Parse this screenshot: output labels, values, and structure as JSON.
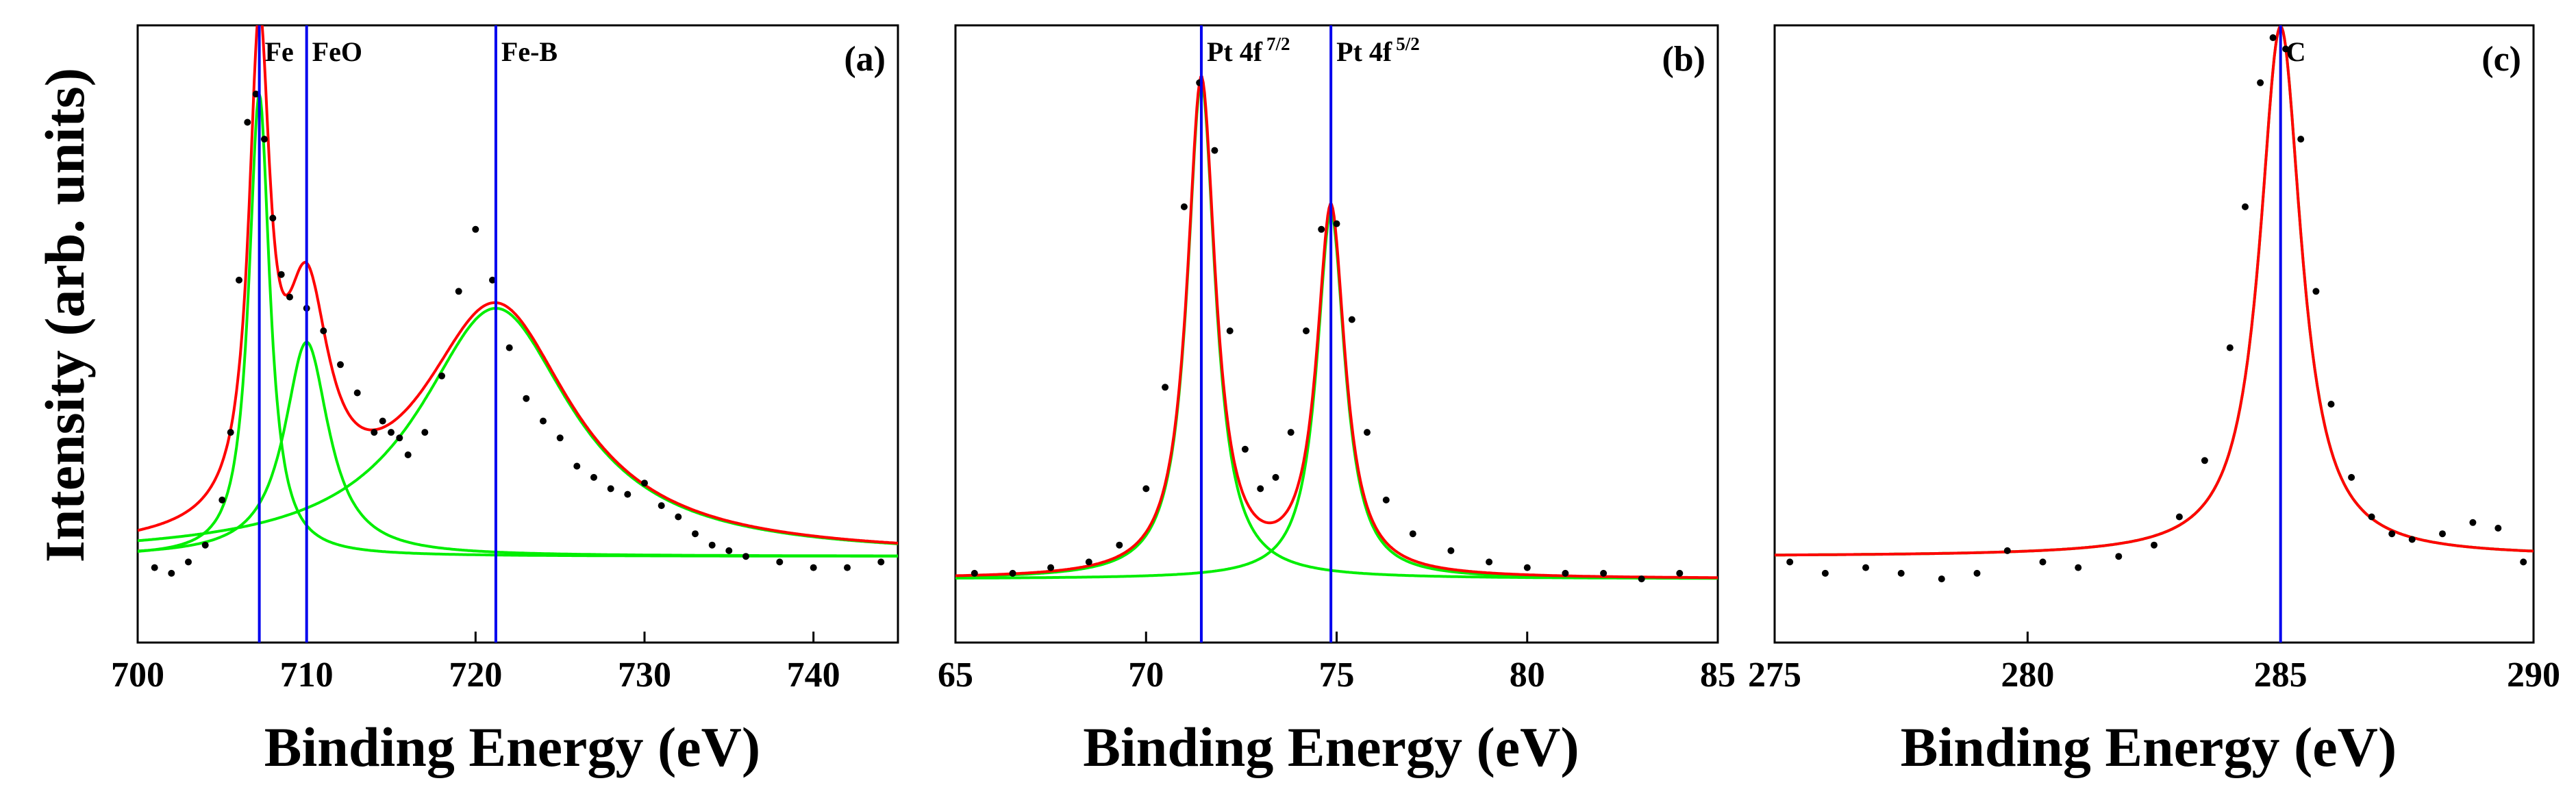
{
  "ylabel": "Intensity (arb. units)",
  "colors": {
    "envelope": "#ff0000",
    "component": "#00ee00",
    "marker": "#0000ee",
    "data": "#000000",
    "frame": "#000000"
  },
  "chart_data": [
    {
      "type": "line",
      "panel": "(a)",
      "xlabel": "Binding Energy (eV)",
      "xlim": [
        700,
        745
      ],
      "ylim": [
        0,
        1
      ],
      "xticks": [
        700,
        710,
        720,
        730,
        740
      ],
      "xtick_labels": [
        "700",
        "710",
        "720",
        "730",
        "740"
      ],
      "markers": [
        {
          "x": 707.2,
          "label": "Fe",
          "sup": ""
        },
        {
          "x": 710.0,
          "label": "FeO",
          "sup": ""
        },
        {
          "x": 721.2,
          "label": "Fe-B",
          "sup": ""
        }
      ],
      "baseline": 0.08,
      "components": [
        {
          "name": "Fe",
          "center": 707.2,
          "amp": 0.82,
          "width": 0.75
        },
        {
          "name": "FeO",
          "center": 710.0,
          "amp": 0.38,
          "width": 1.6
        },
        {
          "name": "Fe-B",
          "center": 721.2,
          "amp": 0.44,
          "width": 5.5
        }
      ],
      "data_points": [
        [
          701,
          0.06
        ],
        [
          702,
          0.05
        ],
        [
          703,
          0.07
        ],
        [
          704,
          0.1
        ],
        [
          705,
          0.18
        ],
        [
          705.5,
          0.3
        ],
        [
          706,
          0.57
        ],
        [
          706.5,
          0.85
        ],
        [
          707,
          0.9
        ],
        [
          707.5,
          0.82
        ],
        [
          708,
          0.68
        ],
        [
          708.5,
          0.58
        ],
        [
          709,
          0.54
        ],
        [
          710,
          0.52
        ],
        [
          711,
          0.48
        ],
        [
          712,
          0.42
        ],
        [
          713,
          0.37
        ],
        [
          714,
          0.3
        ],
        [
          714.5,
          0.32
        ],
        [
          715,
          0.3
        ],
        [
          715.5,
          0.29
        ],
        [
          716,
          0.26
        ],
        [
          717,
          0.3
        ],
        [
          718,
          0.4
        ],
        [
          719,
          0.55
        ],
        [
          720,
          0.66
        ],
        [
          721,
          0.57
        ],
        [
          722,
          0.45
        ],
        [
          723,
          0.36
        ],
        [
          724,
          0.32
        ],
        [
          725,
          0.29
        ],
        [
          726,
          0.24
        ],
        [
          727,
          0.22
        ],
        [
          728,
          0.2
        ],
        [
          729,
          0.19
        ],
        [
          730,
          0.21
        ],
        [
          731,
          0.17
        ],
        [
          732,
          0.15
        ],
        [
          733,
          0.12
        ],
        [
          734,
          0.1
        ],
        [
          735,
          0.09
        ],
        [
          736,
          0.08
        ],
        [
          738,
          0.07
        ],
        [
          740,
          0.06
        ],
        [
          742,
          0.06
        ],
        [
          744,
          0.07
        ]
      ]
    },
    {
      "type": "line",
      "panel": "(b)",
      "xlabel": "Binding Energy (eV)",
      "xlim": [
        65,
        85
      ],
      "ylim": [
        0,
        1
      ],
      "xticks": [
        65,
        70,
        75,
        80,
        85
      ],
      "xtick_labels": [
        "65",
        "70",
        "75",
        "80",
        "85"
      ],
      "markers": [
        {
          "x": 71.45,
          "label": "Pt 4f",
          "sup": "7/2"
        },
        {
          "x": 74.85,
          "label": "Pt 4f",
          "sup": "5/2"
        }
      ],
      "baseline": 0.04,
      "components": [
        {
          "name": "Pt 4f 7/2",
          "center": 71.45,
          "amp": 0.88,
          "width": 0.45
        },
        {
          "name": "Pt 4f 5/2",
          "center": 74.85,
          "amp": 0.65,
          "width": 0.45
        }
      ],
      "data_points": [
        [
          65.5,
          0.05
        ],
        [
          66.5,
          0.05
        ],
        [
          67.5,
          0.06
        ],
        [
          68.5,
          0.07
        ],
        [
          69.3,
          0.1
        ],
        [
          70,
          0.2
        ],
        [
          70.5,
          0.38
        ],
        [
          71,
          0.7
        ],
        [
          71.4,
          0.92
        ],
        [
          71.8,
          0.8
        ],
        [
          72.2,
          0.48
        ],
        [
          72.6,
          0.27
        ],
        [
          73,
          0.2
        ],
        [
          73.4,
          0.22
        ],
        [
          73.8,
          0.3
        ],
        [
          74.2,
          0.48
        ],
        [
          74.6,
          0.66
        ],
        [
          75,
          0.67
        ],
        [
          75.4,
          0.5
        ],
        [
          75.8,
          0.3
        ],
        [
          76.3,
          0.18
        ],
        [
          77,
          0.12
        ],
        [
          78,
          0.09
        ],
        [
          79,
          0.07
        ],
        [
          80,
          0.06
        ],
        [
          81,
          0.05
        ],
        [
          82,
          0.05
        ],
        [
          83,
          0.04
        ],
        [
          84,
          0.05
        ]
      ]
    },
    {
      "type": "line",
      "panel": "(c)",
      "xlabel": "Binding Energy (eV)",
      "xlim": [
        275,
        290
      ],
      "ylim": [
        0,
        1
      ],
      "xticks": [
        275,
        280,
        285,
        290
      ],
      "xtick_labels": [
        "275",
        "280",
        "285",
        "290"
      ],
      "markers": [
        {
          "x": 285.0,
          "label": "C",
          "sup": ""
        }
      ],
      "baseline": 0.08,
      "components": [
        {
          "name": "C",
          "center": 285.0,
          "amp": 0.94,
          "width": 0.5
        }
      ],
      "data_points": [
        [
          275.3,
          0.07
        ],
        [
          276,
          0.05
        ],
        [
          276.8,
          0.06
        ],
        [
          277.5,
          0.05
        ],
        [
          278.3,
          0.04
        ],
        [
          279,
          0.05
        ],
        [
          279.6,
          0.09
        ],
        [
          280.3,
          0.07
        ],
        [
          281,
          0.06
        ],
        [
          281.8,
          0.08
        ],
        [
          282.5,
          0.1
        ],
        [
          283,
          0.15
        ],
        [
          283.5,
          0.25
        ],
        [
          284,
          0.45
        ],
        [
          284.3,
          0.7
        ],
        [
          284.6,
          0.92
        ],
        [
          284.85,
          1.0
        ],
        [
          285.1,
          0.98
        ],
        [
          285.4,
          0.82
        ],
        [
          285.7,
          0.55
        ],
        [
          286,
          0.35
        ],
        [
          286.4,
          0.22
        ],
        [
          286.8,
          0.15
        ],
        [
          287.2,
          0.12
        ],
        [
          287.6,
          0.11
        ],
        [
          288.2,
          0.12
        ],
        [
          288.8,
          0.14
        ],
        [
          289.3,
          0.13
        ],
        [
          289.8,
          0.07
        ]
      ]
    }
  ]
}
